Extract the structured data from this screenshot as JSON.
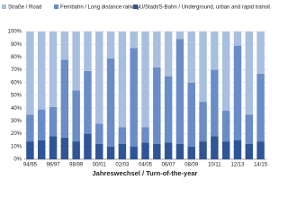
{
  "chart_data": {
    "type": "stacked-bar",
    "categories": [
      "94/95",
      null,
      "96/97",
      null,
      "98/99",
      null,
      "00/01",
      null,
      "02/03",
      null,
      "04/05",
      null,
      "06/07",
      null,
      "08/09",
      null,
      "10/11",
      null,
      "12/13",
      null,
      "14/15"
    ],
    "series": [
      {
        "name": "Straße / Road",
        "color": "#a9bfe0",
        "values": [
          65,
          61,
          59,
          22,
          46,
          31,
          72,
          21,
          75,
          13,
          75,
          28,
          35,
          6,
          40,
          55,
          30,
          62,
          11,
          65,
          33
        ]
      },
      {
        "name": "Fernbahn / Long distance railway",
        "color": "#6a8cc7",
        "values": [
          21,
          24,
          23,
          61,
          40,
          49,
          16,
          69,
          13,
          77,
          12,
          60,
          52,
          82,
          50,
          31,
          52,
          24,
          74,
          23,
          53
        ]
      },
      {
        "name": "U/Stadt/S-Bahn / Underground, urban and rapid transit systems",
        "color": "#2f5597",
        "values": [
          14,
          15,
          18,
          17,
          14,
          20,
          12,
          10,
          12,
          10,
          13,
          12,
          13,
          12,
          10,
          14,
          18,
          14,
          15,
          12,
          14
        ]
      }
    ],
    "x_label": "Jahreswechsel / Turn-of-the-year",
    "ylim": [
      0,
      100
    ],
    "yticks": [
      {
        "value": 0,
        "label": "0%"
      },
      {
        "value": 10,
        "label": "10%"
      },
      {
        "value": 20,
        "label": "20%"
      },
      {
        "value": 30,
        "label": "30%"
      },
      {
        "value": 40,
        "label": "40%"
      },
      {
        "value": 50,
        "label": "50%"
      },
      {
        "value": 60,
        "label": "60%"
      },
      {
        "value": 70,
        "label": "70%"
      },
      {
        "value": 80,
        "label": "80%"
      },
      {
        "value": 90,
        "label": "90%"
      },
      {
        "value": 100,
        "label": "100%"
      }
    ],
    "grid": true,
    "legend": "top"
  }
}
